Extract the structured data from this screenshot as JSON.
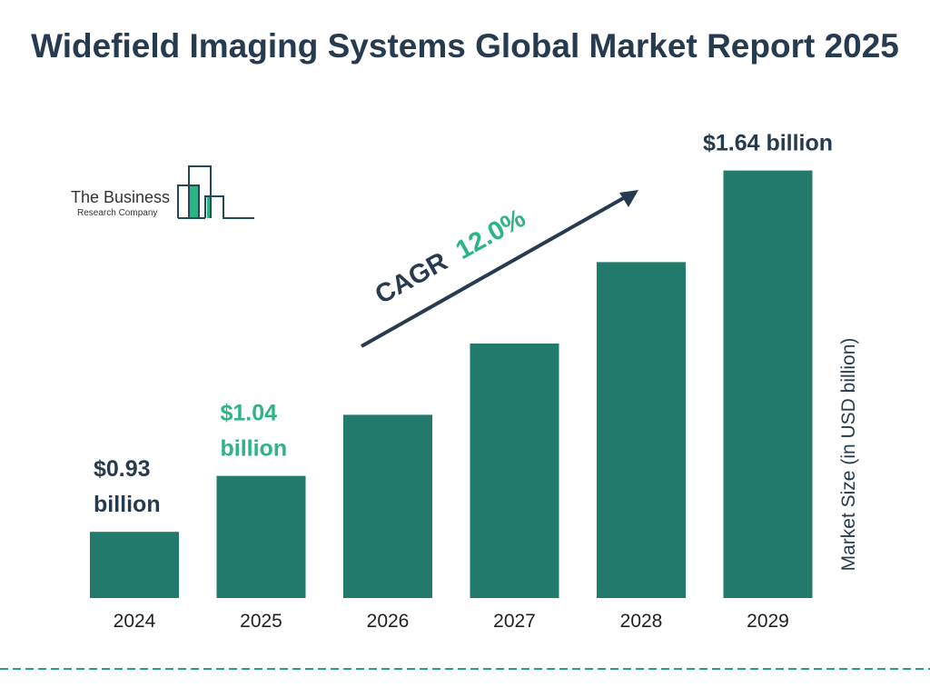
{
  "chart_data": {
    "type": "bar",
    "title": "Widefield Imaging Systems Global Market Report 2025",
    "categories": [
      "2024",
      "2025",
      "2026",
      "2027",
      "2028",
      "2029"
    ],
    "values": [
      0.93,
      1.04,
      1.16,
      1.3,
      1.46,
      1.64
    ],
    "data_labels": [
      {
        "index": 0,
        "lines": [
          "$0.93",
          "billion"
        ],
        "color": "#263a50"
      },
      {
        "index": 1,
        "lines": [
          "$1.04",
          "billion"
        ],
        "color": "#2bb583"
      },
      {
        "index": 5,
        "lines": [
          "$1.64 billion"
        ],
        "color": "#263a50"
      }
    ],
    "ylabel": "Market Size (in USD billion)",
    "annotation": {
      "prefix": "CAGR",
      "value": "12.0%"
    },
    "bar_color": "#217a6b",
    "grid": false
  },
  "logo": {
    "line1": "The Business",
    "line2": "Research Company"
  }
}
